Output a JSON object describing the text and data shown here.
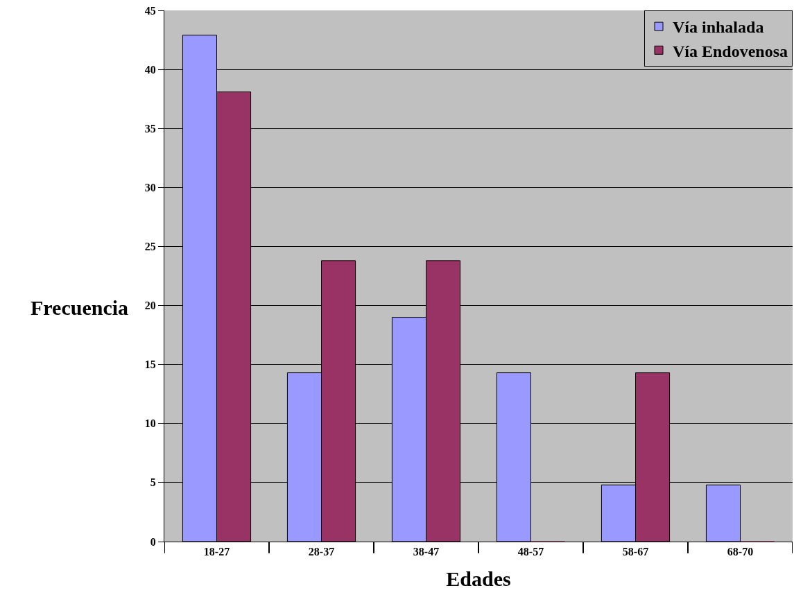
{
  "chart_data": {
    "type": "bar",
    "xlabel": "Edades",
    "ylabel": "Frecuencia",
    "categories": [
      "18-27",
      "28-37",
      "38-47",
      "48-57",
      "58-67",
      "68-70"
    ],
    "series": [
      {
        "name": "Vía inhalada",
        "color": "#9999ff",
        "values": [
          42.9,
          14.3,
          19,
          14.3,
          4.8,
          4.8
        ]
      },
      {
        "name": "Vía Endovenosa",
        "color": "#993366",
        "values": [
          38.1,
          23.8,
          23.8,
          0,
          14.3,
          0
        ]
      }
    ],
    "ylim": [
      0,
      45
    ],
    "yticks": [
      0,
      5,
      10,
      15,
      20,
      25,
      30,
      35,
      40,
      45
    ],
    "grid": "y",
    "legend": "top right"
  }
}
